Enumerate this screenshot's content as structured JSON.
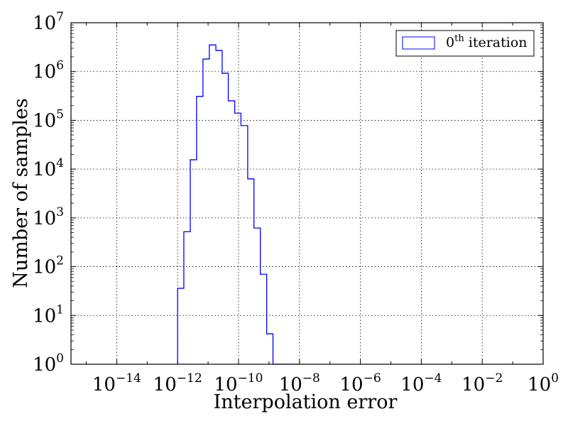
{
  "chart_data": {
    "type": "histogram",
    "xlabel": "Interpolation error",
    "ylabel": "Number of samples",
    "xscale": "log",
    "yscale": "log",
    "xlim": [
      3.16e-16,
      1
    ],
    "ylim": [
      1,
      10000000
    ],
    "grid": true,
    "legend_position": "top-right",
    "x_tick_exponents": [
      -14,
      -12,
      -10,
      -8,
      -6,
      -4,
      -2,
      0
    ],
    "y_tick_exponents": [
      0,
      1,
      2,
      3,
      4,
      5,
      6,
      7
    ],
    "tick_base": "10",
    "series": [
      {
        "name": "0th iteration",
        "legend_base": "0",
        "legend_superscript": "th",
        "legend_suffix": " iteration",
        "color": "#0000ff",
        "bin_edges": [
          1e-12,
          1.6e-12,
          2.6e-12,
          4.2e-12,
          6.8e-12,
          1.1e-11,
          1.8e-11,
          2.9e-11,
          4.6e-11,
          7.5e-11,
          1.2e-10,
          2e-10,
          3.2e-10,
          5.2e-10,
          8.4e-10,
          1.35e-09,
          2.2e-09,
          3.5e-09,
          5.7e-09,
          9.2e-09
        ],
        "counts": [
          36,
          520,
          15500,
          310000,
          1800000,
          3500000,
          2700000,
          920000,
          250000,
          140000,
          78000,
          6300,
          620,
          70,
          4.2,
          1,
          1,
          1,
          1
        ]
      }
    ]
  }
}
